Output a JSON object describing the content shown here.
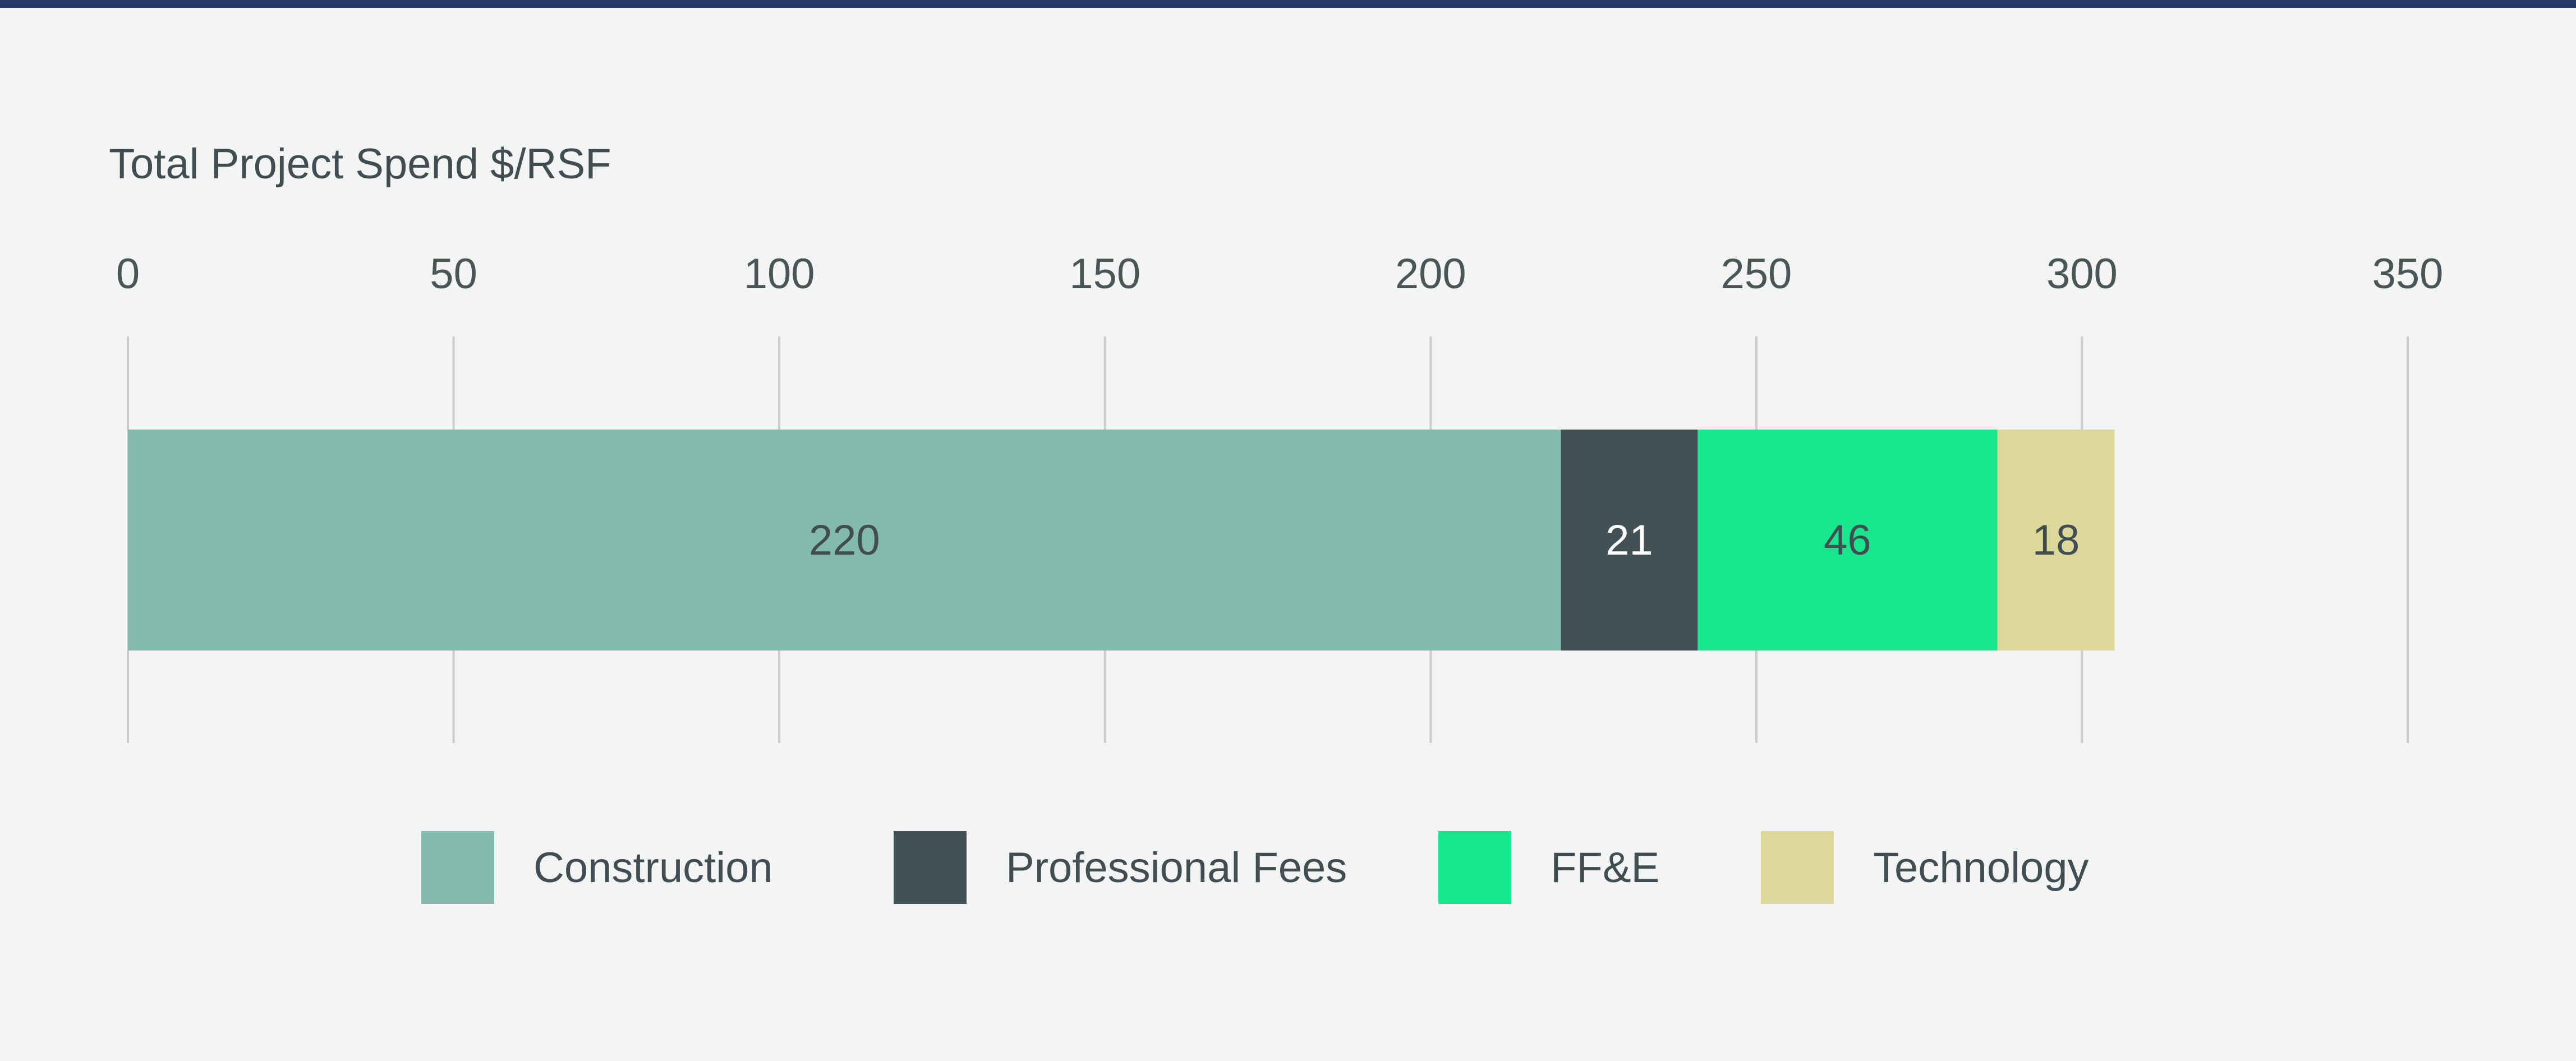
{
  "chart_data": {
    "type": "bar",
    "orientation": "horizontal",
    "stacked": true,
    "title": "Total Project Spend $/RSF",
    "categories": [
      ""
    ],
    "series": [
      {
        "name": "Construction",
        "values": [
          220
        ],
        "color": "#82bbad",
        "label_color": "#414d50"
      },
      {
        "name": "Professional Fees",
        "values": [
          21
        ],
        "color": "#415154",
        "label_color": "#ffffff"
      },
      {
        "name": "FF&E",
        "values": [
          46
        ],
        "color": "#17e68c",
        "label_color": "#414d50"
      },
      {
        "name": "Technology",
        "values": [
          18
        ],
        "color": "#dbd89a",
        "label_color": "#414d50"
      }
    ],
    "xlim": [
      0,
      350
    ],
    "xticks": [
      0,
      50,
      100,
      150,
      200,
      250,
      300,
      350
    ],
    "tick_labels": [
      "0",
      "50",
      "100",
      "150",
      "200",
      "250",
      "300",
      "350"
    ],
    "xaxis_position": "top",
    "grid": true,
    "legend": "bottom",
    "colors": {
      "background": "#f3f5f4",
      "top_rule": "#243a64",
      "grid": "#c9cccb"
    }
  }
}
